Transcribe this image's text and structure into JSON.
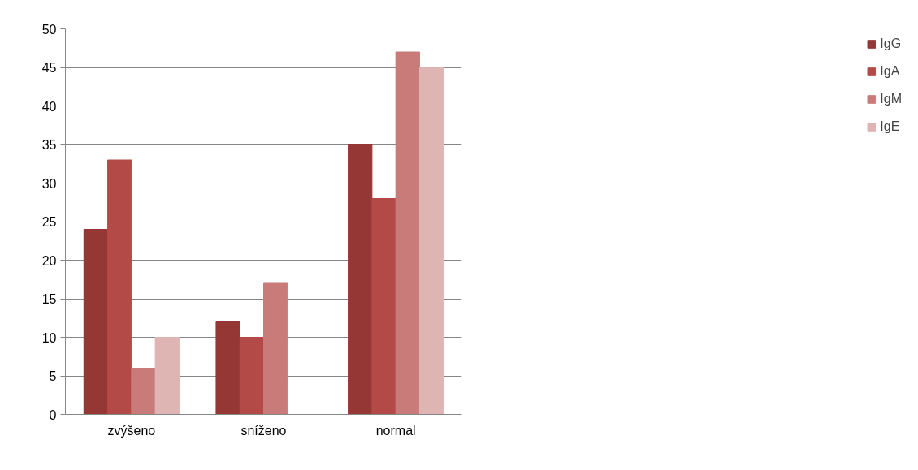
{
  "chart_data": {
    "type": "bar",
    "categories": [
      "zvýšeno",
      "sníženo",
      "normal"
    ],
    "series": [
      {
        "name": "IgG",
        "color": "#953735",
        "values": [
          24,
          12,
          35
        ]
      },
      {
        "name": "IgA",
        "color": "#b44a47",
        "values": [
          33,
          10,
          28
        ]
      },
      {
        "name": "IgM",
        "color": "#c97b7a",
        "values": [
          6,
          17,
          47
        ]
      },
      {
        "name": "IgE",
        "color": "#dfb5b4",
        "values": [
          10,
          null,
          45
        ]
      }
    ],
    "ylim": [
      0,
      50
    ],
    "yticks": [
      0,
      5,
      10,
      15,
      20,
      25,
      30,
      35,
      40,
      45,
      50
    ],
    "grid": "y",
    "legend": "right"
  }
}
